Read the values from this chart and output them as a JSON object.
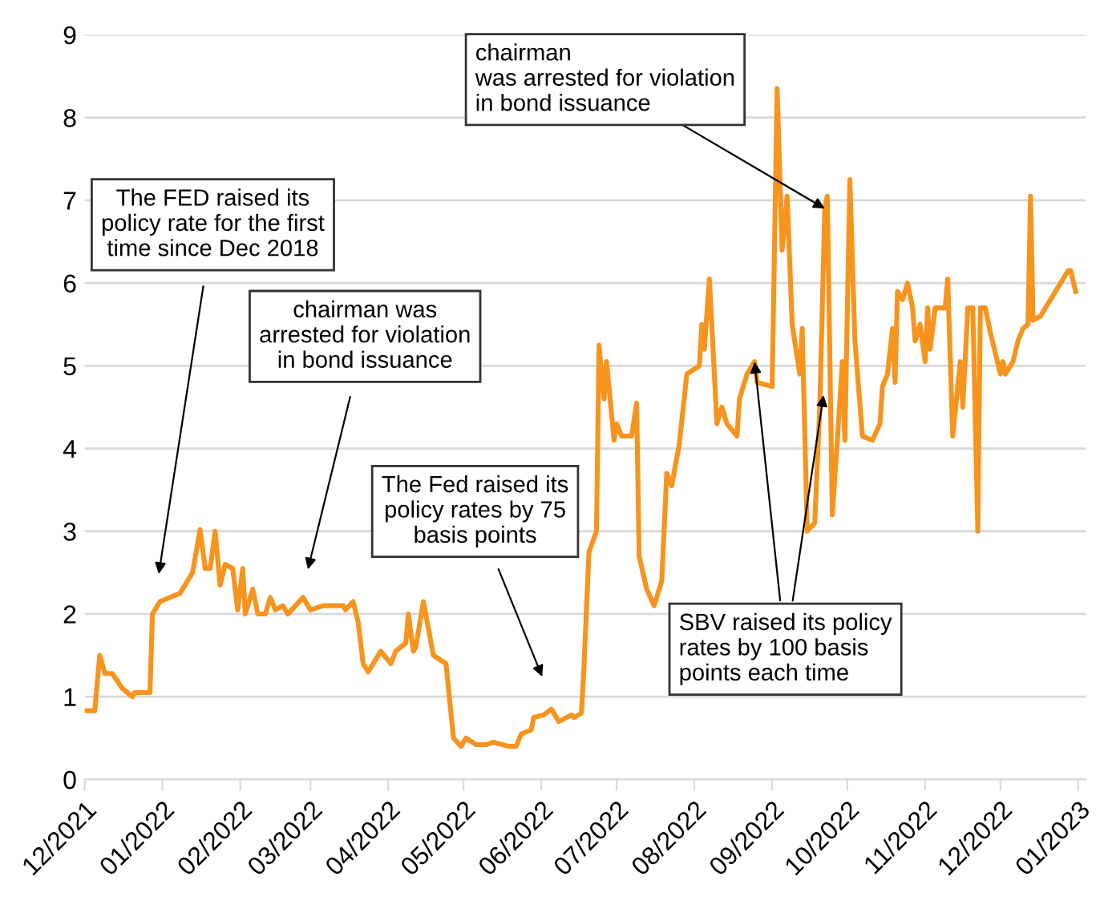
{
  "chart_data": {
    "type": "line",
    "x": [
      "2021-12-01",
      "2021-12-05",
      "2021-12-07",
      "2021-12-09",
      "2021-12-12",
      "2021-12-16",
      "2021-12-20",
      "2021-12-21",
      "2021-12-27",
      "2021-12-28",
      "2021-12-31",
      "2022-01-08",
      "2022-01-13",
      "2022-01-16",
      "2022-01-18",
      "2022-01-20",
      "2022-01-22",
      "2022-01-24",
      "2022-01-26",
      "2022-01-29",
      "2022-01-31",
      "2022-02-02",
      "2022-02-03",
      "2022-02-06",
      "2022-02-08",
      "2022-02-11",
      "2022-02-13",
      "2022-02-15",
      "2022-02-18",
      "2022-02-20",
      "2022-02-26",
      "2022-03-01",
      "2022-03-06",
      "2022-03-14",
      "2022-03-15",
      "2022-03-18",
      "2022-03-20",
      "2022-03-22",
      "2022-03-24",
      "2022-03-26",
      "2022-03-29",
      "2022-04-02",
      "2022-04-04",
      "2022-04-08",
      "2022-04-09",
      "2022-04-11",
      "2022-04-12",
      "2022-04-15",
      "2022-04-19",
      "2022-04-24",
      "2022-04-27",
      "2022-04-30",
      "2022-05-02",
      "2022-05-06",
      "2022-05-10",
      "2022-05-13",
      "2022-05-19",
      "2022-05-22",
      "2022-05-24",
      "2022-05-28",
      "2022-05-29",
      "2022-06-02",
      "2022-06-05",
      "2022-06-08",
      "2022-06-13",
      "2022-06-14",
      "2022-06-17",
      "2022-06-18",
      "2022-06-20",
      "2022-06-23",
      "2022-06-24",
      "2022-06-26",
      "2022-06-27",
      "2022-06-30",
      "2022-07-01",
      "2022-07-03",
      "2022-07-07",
      "2022-07-09",
      "2022-07-10",
      "2022-07-13",
      "2022-07-16",
      "2022-07-19",
      "2022-07-21",
      "2022-07-23",
      "2022-07-26",
      "2022-07-29",
      "2022-08-03",
      "2022-08-04",
      "2022-08-05",
      "2022-08-07",
      "2022-08-10",
      "2022-08-12",
      "2022-08-14",
      "2022-08-18",
      "2022-08-19",
      "2022-08-22",
      "2022-08-25",
      "2022-08-26",
      "2022-09-01",
      "2022-09-02",
      "2022-09-03",
      "2022-09-05",
      "2022-09-07",
      "2022-09-09",
      "2022-09-12",
      "2022-09-13",
      "2022-09-15",
      "2022-09-18",
      "2022-09-20",
      "2022-09-22",
      "2022-09-23",
      "2022-09-25",
      "2022-09-27",
      "2022-09-29",
      "2022-09-30",
      "2022-10-02",
      "2022-10-04",
      "2022-10-07",
      "2022-10-11",
      "2022-10-14",
      "2022-10-15",
      "2022-10-17",
      "2022-10-19",
      "2022-10-20",
      "2022-10-21",
      "2022-10-23",
      "2022-10-25",
      "2022-10-27",
      "2022-10-28",
      "2022-10-30",
      "2022-11-01",
      "2022-11-02",
      "2022-11-03",
      "2022-11-05",
      "2022-11-09",
      "2022-11-10",
      "2022-11-12",
      "2022-11-15",
      "2022-11-16",
      "2022-11-18",
      "2022-11-20",
      "2022-11-22",
      "2022-11-23",
      "2022-11-25",
      "2022-11-27",
      "2022-12-01",
      "2022-12-02",
      "2022-12-03",
      "2022-12-06",
      "2022-12-08",
      "2022-12-10",
      "2022-12-12",
      "2022-12-13",
      "2022-12-14",
      "2022-12-17",
      "2022-12-28",
      "2022-12-29",
      "2022-12-31"
    ],
    "series": [
      {
        "color": "#f7941d",
        "values": [
          0.83,
          0.83,
          1.5,
          1.28,
          1.28,
          1.1,
          1.0,
          1.05,
          1.05,
          2.0,
          2.15,
          2.25,
          2.5,
          3.02,
          2.55,
          2.55,
          3.0,
          2.35,
          2.6,
          2.55,
          2.05,
          2.55,
          2.0,
          2.3,
          2.0,
          2.0,
          2.2,
          2.05,
          2.1,
          2.0,
          2.2,
          2.05,
          2.1,
          2.1,
          2.05,
          2.15,
          1.9,
          1.4,
          1.3,
          1.4,
          1.55,
          1.4,
          1.55,
          1.65,
          2.0,
          1.55,
          1.6,
          2.15,
          1.5,
          1.4,
          0.5,
          0.4,
          0.5,
          0.42,
          0.42,
          0.45,
          0.4,
          0.4,
          0.55,
          0.6,
          0.75,
          0.78,
          0.85,
          0.7,
          0.78,
          0.75,
          0.8,
          1.35,
          2.75,
          3.0,
          5.25,
          4.6,
          5.05,
          4.1,
          4.3,
          4.15,
          4.15,
          4.55,
          2.7,
          2.3,
          2.1,
          2.4,
          3.7,
          3.55,
          4.05,
          4.9,
          5.0,
          5.5,
          5.2,
          6.05,
          4.3,
          4.5,
          4.3,
          4.15,
          4.6,
          4.9,
          5.05,
          4.8,
          4.75,
          6.5,
          8.35,
          6.4,
          7.05,
          5.5,
          4.9,
          5.45,
          3.0,
          3.1,
          4.5,
          6.9,
          7.05,
          3.2,
          4.1,
          5.05,
          4.1,
          7.25,
          5.3,
          4.15,
          4.1,
          4.3,
          4.75,
          4.9,
          5.45,
          4.8,
          5.9,
          5.8,
          6.0,
          5.7,
          5.3,
          5.5,
          5.05,
          5.7,
          5.2,
          5.7,
          5.7,
          6.05,
          4.15,
          5.05,
          4.5,
          5.7,
          5.7,
          3.0,
          5.7,
          5.7,
          5.4,
          4.9,
          5.05,
          4.9,
          5.05,
          5.3,
          5.45,
          5.5,
          7.05,
          5.55,
          5.6,
          6.15,
          6.15,
          5.9
        ]
      }
    ],
    "xlim": [
      "2021-12-01",
      "2023-01-04"
    ],
    "xticks": [
      {
        "value": "2021-12-01",
        "label": "12/2021"
      },
      {
        "value": "2022-01-01",
        "label": "01/2022"
      },
      {
        "value": "2022-02-01",
        "label": "02/2022"
      },
      {
        "value": "2022-03-01",
        "label": "03/2022"
      },
      {
        "value": "2022-04-01",
        "label": "04/2022"
      },
      {
        "value": "2022-05-01",
        "label": "05/2022"
      },
      {
        "value": "2022-06-01",
        "label": "06/2022"
      },
      {
        "value": "2022-07-01",
        "label": "07/2022"
      },
      {
        "value": "2022-08-01",
        "label": "08/2022"
      },
      {
        "value": "2022-09-01",
        "label": "09/2022"
      },
      {
        "value": "2022-10-01",
        "label": "10/2022"
      },
      {
        "value": "2022-11-01",
        "label": "11/2022"
      },
      {
        "value": "2022-12-01",
        "label": "12/2022"
      },
      {
        "value": "2023-01-01",
        "label": "01/2023"
      }
    ],
    "ylim": [
      0,
      9
    ],
    "yticks": [
      0,
      1,
      2,
      3,
      4,
      5,
      6,
      7,
      8,
      9
    ],
    "grid": "y",
    "marker": "none",
    "line_style": "solid",
    "annotations": [
      "The FED raised its\npolicy rate for the first\ntime since Dec 2018",
      "chairman was\narrested for violation\nin bond issuance",
      "The Fed raised its\npolicy rates by 75\nbasis points",
      {
        "text": "chairman\nwas arrested for violation\nin bond issuance",
        "x": "2022-09-22",
        "y": 6.9
      },
      {
        "text": "SBV raised its policy\nrates by 100 basis\npoints each time",
        "x": "2022-08-25",
        "y": 5.05
      }
    ]
  }
}
